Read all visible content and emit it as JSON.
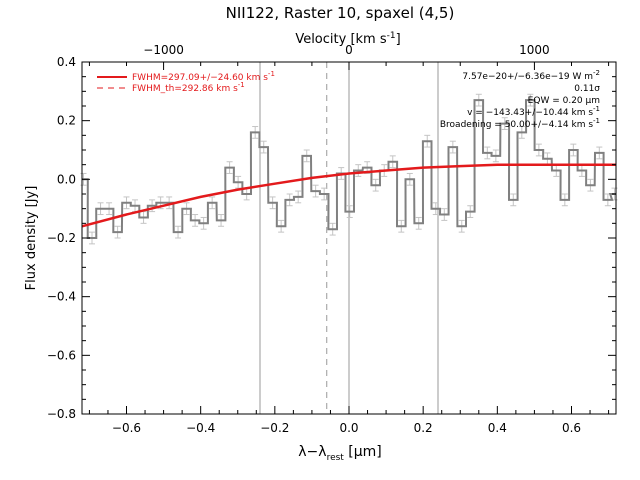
{
  "chart_data": {
    "type": "line",
    "title": "NII122, Raster 10, spaxel (4,5)",
    "xlabel": "λ−λ",
    "xlabel_sub": "rest",
    "xlabel_unit": " [μm]",
    "ylabel": "Flux density [Jy]",
    "top_axis_label": "Velocity [km s",
    "top_axis_label_sup": "-1",
    "top_axis_label_end": "]",
    "xlim": [
      -0.72,
      0.72
    ],
    "ylim": [
      -0.8,
      0.4
    ],
    "top_axis_ticks": [
      {
        "x": -0.5,
        "label": "−1000"
      },
      {
        "x": 0.0,
        "label": "0"
      },
      {
        "x": 0.5,
        "label": "1000"
      }
    ],
    "x_ticks": [
      -0.6,
      -0.4,
      -0.2,
      0.0,
      0.2,
      0.4,
      0.6
    ],
    "x_tick_labels": [
      "−0.6",
      "−0.4",
      "−0.2",
      "0.0",
      "0.2",
      "0.4",
      "0.6"
    ],
    "y_ticks": [
      -0.8,
      -0.6,
      -0.4,
      -0.2,
      0.0,
      0.2,
      0.4
    ],
    "y_tick_labels": [
      "−0.8",
      "−0.6",
      "−0.4",
      "−0.2",
      "0.0",
      "0.2",
      "0.4"
    ],
    "vertical_lines": {
      "solid": [
        -0.24,
        0.0,
        0.24
      ],
      "dashed": [
        -0.06
      ]
    },
    "legend": {
      "placement": "top-left",
      "entries": [
        {
          "style": "solid",
          "label": "FWHM=297.09+/−24.60 km s",
          "sup": "-1"
        },
        {
          "style": "dashed",
          "label": "FWHM_th=292.86 km s",
          "sup": "-1"
        }
      ]
    },
    "annotations": [
      {
        "text": "7.57e−20+/−6.36e−19 W m",
        "sup": "-2"
      },
      {
        "text": "0.11σ"
      },
      {
        "text": "EQW = 0.20 μm"
      },
      {
        "text": "v = −143.43+/−10.44 km s",
        "sup": "-1"
      },
      {
        "text": "Broadening = 50.00+/−4.14 km s",
        "sup": "-1"
      }
    ],
    "series": [
      {
        "kind": "data",
        "color": "#808080",
        "bin_width": 0.0232,
        "x": [
          -0.716,
          -0.693,
          -0.67,
          -0.647,
          -0.624,
          -0.6,
          -0.577,
          -0.554,
          -0.531,
          -0.508,
          -0.485,
          -0.461,
          -0.438,
          -0.415,
          -0.392,
          -0.369,
          -0.345,
          -0.322,
          -0.299,
          -0.276,
          -0.253,
          -0.23,
          -0.206,
          -0.183,
          -0.16,
          -0.137,
          -0.114,
          -0.09,
          -0.067,
          -0.044,
          -0.021,
          0.002,
          0.025,
          0.049,
          0.072,
          0.095,
          0.118,
          0.141,
          0.164,
          0.188,
          0.211,
          0.234,
          0.257,
          0.28,
          0.304,
          0.327,
          0.35,
          0.373,
          0.396,
          0.42,
          0.443,
          0.466,
          0.489,
          0.512,
          0.535,
          0.559,
          0.582,
          0.605,
          0.628,
          0.651,
          0.675,
          0.698,
          0.716
        ],
        "values": [
          0.0,
          -0.2,
          -0.1,
          -0.1,
          -0.18,
          -0.08,
          -0.09,
          -0.13,
          -0.09,
          -0.08,
          -0.08,
          -0.18,
          -0.1,
          -0.14,
          -0.15,
          -0.08,
          -0.14,
          0.04,
          -0.01,
          -0.05,
          0.16,
          0.11,
          -0.08,
          -0.16,
          -0.07,
          -0.06,
          0.08,
          -0.04,
          -0.05,
          -0.17,
          0.02,
          -0.11,
          0.03,
          0.04,
          -0.02,
          0.03,
          0.06,
          -0.16,
          0.0,
          -0.15,
          0.13,
          -0.1,
          -0.12,
          0.11,
          -0.16,
          -0.11,
          0.27,
          0.09,
          0.08,
          0.19,
          -0.07,
          0.16,
          0.27,
          0.1,
          0.07,
          0.03,
          -0.07,
          0.1,
          0.03,
          -0.02,
          0.09,
          -0.07,
          -0.05
        ],
        "error": 0.02
      },
      {
        "kind": "fit",
        "color": "#e31a1c",
        "x": [
          -0.72,
          -0.6,
          -0.5,
          -0.4,
          -0.3,
          -0.2,
          -0.1,
          0.0,
          0.1,
          0.2,
          0.3,
          0.4,
          0.5,
          0.6,
          0.72
        ],
        "values": [
          -0.16,
          -0.12,
          -0.09,
          -0.06,
          -0.035,
          -0.015,
          0.005,
          0.02,
          0.03,
          0.04,
          0.045,
          0.05,
          0.05,
          0.05,
          0.05
        ]
      }
    ]
  }
}
